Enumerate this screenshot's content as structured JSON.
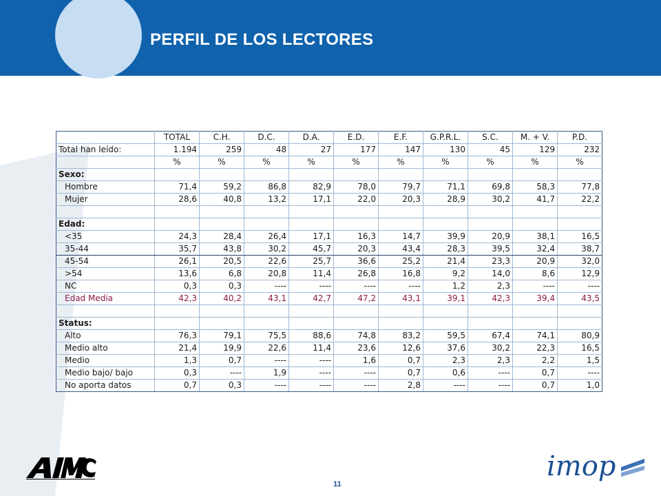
{
  "header": {
    "title": "PERFIL DE LOS LECTORES"
  },
  "table": {
    "columns": [
      "",
      "TOTAL",
      "C.H.",
      "D.C.",
      "D.A.",
      "E.D.",
      "E.F.",
      "G.P.R.L.",
      "S.C.",
      "M. + V.",
      "P.D."
    ],
    "rows": [
      {
        "label": "Total han leído:",
        "values": [
          "1.194",
          "259",
          "48",
          "27",
          "177",
          "147",
          "130",
          "45",
          "129",
          "232"
        ]
      },
      {
        "label": "",
        "values": [
          "%",
          "%",
          "%",
          "%",
          "%",
          "%",
          "%",
          "%",
          "%",
          "%"
        ],
        "style": "pct"
      },
      {
        "label": "Sexo:",
        "values": [
          "",
          "",
          "",
          "",
          "",
          "",
          "",
          "",
          "",
          ""
        ],
        "style": "section"
      },
      {
        "label": "Hombre",
        "values": [
          "71,4",
          "59,2",
          "86,8",
          "82,9",
          "78,0",
          "79,7",
          "71,1",
          "69,8",
          "58,3",
          "77,8"
        ],
        "style": "indent"
      },
      {
        "label": "Mujer",
        "values": [
          "28,6",
          "40,8",
          "13,2",
          "17,1",
          "22,0",
          "20,3",
          "28,9",
          "30,2",
          "41,7",
          "22,2"
        ],
        "style": "indent"
      },
      {
        "label": "",
        "values": [
          "",
          "",
          "",
          "",
          "",
          "",
          "",
          "",
          "",
          ""
        ],
        "style": "blank"
      },
      {
        "label": "Edad:",
        "values": [
          "",
          "",
          "",
          "",
          "",
          "",
          "",
          "",
          "",
          ""
        ],
        "style": "section"
      },
      {
        "label": "<35",
        "values": [
          "24,3",
          "28,4",
          "26,4",
          "17,1",
          "16,3",
          "14,7",
          "39,9",
          "20,9",
          "38,1",
          "16,5"
        ],
        "style": "indent"
      },
      {
        "label": "35-44",
        "values": [
          "35,7",
          "43,8",
          "30,2",
          "45,7",
          "20,3",
          "43,4",
          "28,3",
          "39,5",
          "32,4",
          "38,7"
        ],
        "style": "indent rule"
      },
      {
        "label": "45-54",
        "values": [
          "26,1",
          "20,5",
          "22,6",
          "25,7",
          "36,6",
          "25,2",
          "21,4",
          "23,3",
          "20,9",
          "32,0"
        ],
        "style": "indent"
      },
      {
        "label": ">54",
        "values": [
          "13,6",
          "6,8",
          "20,8",
          "11,4",
          "26,8",
          "16,8",
          "9,2",
          "14,0",
          "8,6",
          "12,9"
        ],
        "style": "indent"
      },
      {
        "label": "NC",
        "values": [
          "0,3",
          "0,3",
          "----",
          "----",
          "----",
          "----",
          "1,2",
          "2,3",
          "----",
          "----"
        ],
        "style": "indent"
      },
      {
        "label": "Edad Media",
        "values": [
          "42,3",
          "40,2",
          "43,1",
          "42,7",
          "47,2",
          "43,1",
          "39,1",
          "42,3",
          "39,4",
          "43,5"
        ],
        "style": "indent highlight"
      },
      {
        "label": "",
        "values": [
          "",
          "",
          "",
          "",
          "",
          "",
          "",
          "",
          "",
          ""
        ],
        "style": "blank"
      },
      {
        "label": "Status:",
        "values": [
          "",
          "",
          "",
          "",
          "",
          "",
          "",
          "",
          "",
          ""
        ],
        "style": "section"
      },
      {
        "label": "Alto",
        "values": [
          "76,3",
          "79,1",
          "75,5",
          "88,6",
          "74,8",
          "83,2",
          "59,5",
          "67,4",
          "74,1",
          "80,9"
        ],
        "style": "indent"
      },
      {
        "label": "Medio alto",
        "values": [
          "21,4",
          "19,9",
          "22,6",
          "11,4",
          "23,6",
          "12,6",
          "37,6",
          "30,2",
          "22,3",
          "16,5"
        ],
        "style": "indent"
      },
      {
        "label": "Medio",
        "values": [
          "1,3",
          "0,7",
          "----",
          "----",
          "1,6",
          "0,7",
          "2,3",
          "2,3",
          "2,2",
          "1,5"
        ],
        "style": "indent"
      },
      {
        "label": "Medio bajo/ bajo",
        "values": [
          "0,3",
          "----",
          "1,9",
          "----",
          "----",
          "0,7",
          "0,6",
          "----",
          "0,7",
          "----"
        ],
        "style": "indent"
      },
      {
        "label": "No aporta datos",
        "values": [
          "0,7",
          "0,3",
          "----",
          "----",
          "----",
          "2,8",
          "----",
          "----",
          "0,7",
          "1,0"
        ],
        "style": "indent"
      }
    ]
  },
  "footer": {
    "page_number": "11",
    "left_logo": {
      "icon": "aimc-logo",
      "text": "AIMC"
    },
    "right_logo": {
      "icon": "imop-logo",
      "text": "imop"
    }
  },
  "colors": {
    "header_band": "#1062ad",
    "header_circle": "#c6ddf3",
    "grid_line": "#9db8d3",
    "highlight_text": "#8b1a4a",
    "watermark": "#e9eef3"
  }
}
